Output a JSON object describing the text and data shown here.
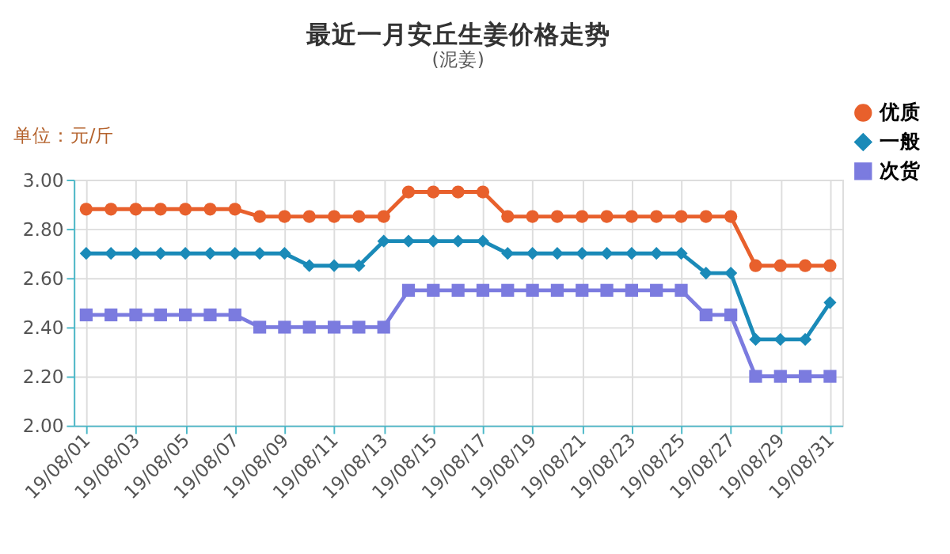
{
  "chart_data": {
    "type": "line",
    "title": "最近一月安丘生姜价格走势",
    "subtitle": "(泥姜)",
    "ylabel": "单位：元/斤",
    "categories": [
      "19/08/01",
      null,
      "19/08/03",
      null,
      "19/08/05",
      null,
      "19/08/07",
      null,
      "19/08/09",
      null,
      "19/08/11",
      null,
      "19/08/13",
      null,
      "19/08/15",
      null,
      "19/08/17",
      null,
      "19/08/19",
      null,
      "19/08/21",
      null,
      "19/08/23",
      null,
      "19/08/25",
      null,
      "19/08/27",
      null,
      "19/08/29",
      null,
      "19/08/31"
    ],
    "series": [
      {
        "name": "优质",
        "color": "#e8602c",
        "marker": "circle",
        "values": [
          2.88,
          2.88,
          2.88,
          2.88,
          2.88,
          2.88,
          2.88,
          2.85,
          2.85,
          2.85,
          2.85,
          2.85,
          2.85,
          2.95,
          2.95,
          2.95,
          2.95,
          2.85,
          2.85,
          2.85,
          2.85,
          2.85,
          2.85,
          2.85,
          2.85,
          2.85,
          2.85,
          2.65,
          2.65,
          2.65,
          2.65
        ]
      },
      {
        "name": "一般",
        "color": "#1a8ab8",
        "marker": "diamond",
        "values": [
          2.7,
          2.7,
          2.7,
          2.7,
          2.7,
          2.7,
          2.7,
          2.7,
          2.7,
          2.65,
          2.65,
          2.65,
          2.75,
          2.75,
          2.75,
          2.75,
          2.75,
          2.7,
          2.7,
          2.7,
          2.7,
          2.7,
          2.7,
          2.7,
          2.7,
          2.62,
          2.62,
          2.35,
          2.35,
          2.35,
          2.5
        ]
      },
      {
        "name": "次货",
        "color": "#7b7bdf",
        "marker": "square",
        "values": [
          2.45,
          2.45,
          2.45,
          2.45,
          2.45,
          2.45,
          2.45,
          2.4,
          2.4,
          2.4,
          2.4,
          2.4,
          2.4,
          2.55,
          2.55,
          2.55,
          2.55,
          2.55,
          2.55,
          2.55,
          2.55,
          2.55,
          2.55,
          2.55,
          2.55,
          2.45,
          2.45,
          2.2,
          2.2,
          2.2,
          2.2
        ]
      }
    ],
    "ylim": [
      2.0,
      3.0
    ],
    "yticks": [
      {
        "value": 2.0,
        "label": "2.00"
      },
      {
        "value": 2.2,
        "label": "2.20"
      },
      {
        "value": 2.4,
        "label": "2.40"
      },
      {
        "value": 2.6,
        "label": "2.60"
      },
      {
        "value": 2.8,
        "label": "2.80"
      },
      {
        "value": 3.0,
        "label": "3.00"
      }
    ],
    "grid": true,
    "legend": "top right",
    "line_style": "solid"
  }
}
